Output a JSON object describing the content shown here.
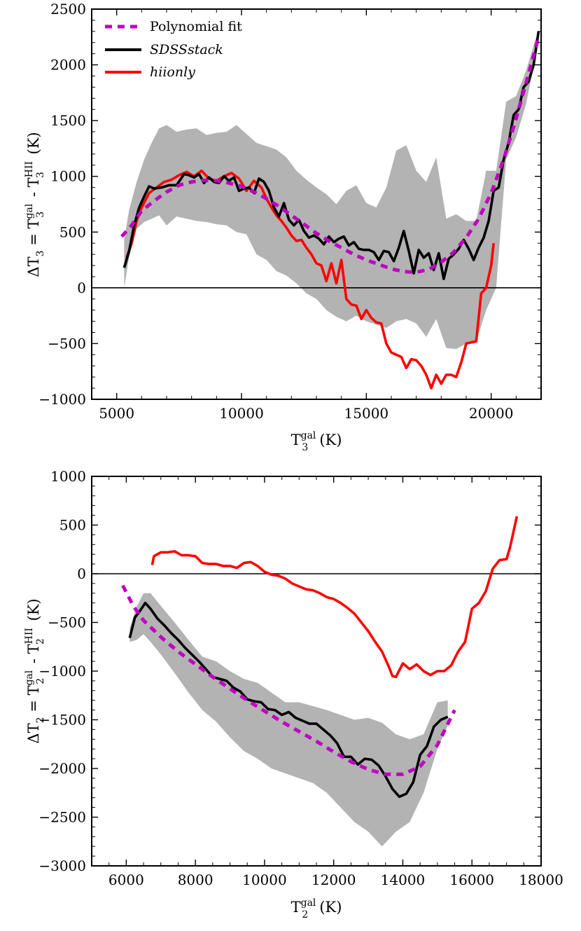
{
  "chart_data": [
    {
      "id": "top",
      "type": "line",
      "xlabel": {
        "main": "T",
        "sup": "gal",
        "sub": "3",
        "unit": "(K)"
      },
      "ylabel": {
        "prefix": "ΔT",
        "sub1": "3",
        "eq": " = T",
        "sup2": "gal",
        "sub2": "3",
        "mid": " - T",
        "sup3": "HII",
        "sub3": "3",
        "unit": " (K)"
      },
      "xlim": [
        4000,
        22000
      ],
      "ylim": [
        -1000,
        2500
      ],
      "xticks": [
        5000,
        10000,
        15000,
        20000
      ],
      "xtick_labels": [
        "5000",
        "10000",
        "15000",
        "20000"
      ],
      "yticks": [
        -1000,
        -500,
        0,
        500,
        1000,
        1500,
        2000,
        2500
      ],
      "ytick_labels": [
        "−1000",
        "−500",
        "0",
        "500",
        "1000",
        "1500",
        "2000",
        "2500"
      ],
      "xminor_step": 1000,
      "yminor_step": 100,
      "zero_line": 0,
      "legend": {
        "location": "upper-left",
        "entries": [
          {
            "label": "Polynomial fit",
            "style": "dashed",
            "color": "#bf00bf",
            "italic": false
          },
          {
            "label": "SDSSstack",
            "style": "solid",
            "color": "#000000",
            "italic": true
          },
          {
            "label": "hiionly",
            "style": "solid",
            "color": "#ff0000",
            "italic": true
          }
        ]
      },
      "band": {
        "name": "SDSSstack scatter",
        "color": "#b3b3b3",
        "x": [
          5300,
          5500,
          5800,
          6100,
          6400,
          6700,
          7000,
          7400,
          7800,
          8200,
          8600,
          9000,
          9400,
          9800,
          10200,
          10600,
          11000,
          11400,
          11800,
          12200,
          12600,
          13000,
          13400,
          13800,
          14200,
          14600,
          15000,
          15400,
          15800,
          16200,
          16600,
          17000,
          17400,
          17800,
          18200,
          18600,
          19000,
          19400,
          19800,
          20200,
          20600,
          21000,
          21400,
          21800
        ],
        "upper": [
          430,
          700,
          950,
          1150,
          1300,
          1430,
          1460,
          1400,
          1420,
          1430,
          1370,
          1390,
          1400,
          1460,
          1380,
          1300,
          1270,
          1240,
          1170,
          1050,
          970,
          900,
          840,
          750,
          870,
          920,
          760,
          720,
          900,
          1230,
          1280,
          1050,
          950,
          1170,
          620,
          660,
          600,
          600,
          1050,
          1050,
          1670,
          1720,
          1950,
          2250
        ],
        "lower": [
          0,
          280,
          530,
          590,
          620,
          650,
          560,
          640,
          620,
          600,
          590,
          570,
          560,
          500,
          480,
          300,
          250,
          150,
          110,
          40,
          -50,
          -100,
          -200,
          -260,
          -300,
          -250,
          -300,
          -330,
          -360,
          -300,
          -280,
          -320,
          -440,
          -280,
          -540,
          -550,
          -500,
          -480,
          -200,
          0,
          1150,
          1350,
          1650,
          2100
        ]
      },
      "series": [
        {
          "name": "Polynomial fit",
          "style": "dashed",
          "color": "#bf00bf",
          "x": [
            5200,
            5600,
            6000,
            6500,
            7000,
            7500,
            8000,
            8500,
            9000,
            9500,
            10000,
            10500,
            11000,
            11500,
            12000,
            12500,
            13000,
            13500,
            14000,
            14500,
            15000,
            15500,
            16000,
            16500,
            17000,
            17500,
            18000,
            18500,
            19000,
            19500,
            20000,
            20500,
            21000,
            21500,
            21900
          ],
          "y": [
            460,
            560,
            690,
            780,
            860,
            920,
            950,
            965,
            960,
            940,
            910,
            860,
            800,
            730,
            650,
            570,
            490,
            420,
            360,
            300,
            250,
            210,
            170,
            145,
            140,
            165,
            230,
            320,
            450,
            620,
            850,
            1150,
            1520,
            1920,
            2250
          ]
        },
        {
          "name": "SDSSstack",
          "style": "solid",
          "color": "#000000",
          "x": [
            5300,
            5500,
            5700,
            5900,
            6100,
            6300,
            6500,
            6800,
            7100,
            7400,
            7700,
            7900,
            8100,
            8300,
            8500,
            8700,
            8900,
            9100,
            9300,
            9500,
            9700,
            9900,
            10100,
            10300,
            10500,
            10700,
            10900,
            11100,
            11300,
            11500,
            11700,
            11900,
            12100,
            12300,
            12500,
            12700,
            12900,
            13100,
            13300,
            13500,
            13700,
            13900,
            14100,
            14300,
            14500,
            14700,
            14900,
            15100,
            15300,
            15500,
            15700,
            15900,
            16100,
            16300,
            16500,
            16700,
            16900,
            17100,
            17300,
            17500,
            17700,
            17900,
            18100,
            18300,
            18500,
            18700,
            18900,
            19100,
            19300,
            19500,
            19700,
            19900,
            20100,
            20300,
            20500,
            20700,
            20900,
            21100,
            21300,
            21500,
            21700,
            21900
          ],
          "y": [
            180,
            330,
            560,
            720,
            820,
            910,
            890,
            900,
            920,
            920,
            1020,
            1010,
            990,
            1020,
            940,
            990,
            950,
            940,
            1000,
            960,
            990,
            870,
            890,
            900,
            850,
            980,
            950,
            870,
            720,
            640,
            760,
            610,
            560,
            610,
            510,
            450,
            470,
            440,
            390,
            460,
            410,
            440,
            460,
            380,
            410,
            350,
            340,
            340,
            320,
            250,
            330,
            320,
            240,
            360,
            510,
            330,
            130,
            340,
            270,
            310,
            160,
            310,
            80,
            260,
            300,
            350,
            430,
            350,
            250,
            360,
            450,
            600,
            870,
            900,
            1150,
            1300,
            1550,
            1600,
            1800,
            1850,
            2000,
            2300
          ]
        },
        {
          "name": "hiionly",
          "style": "solid",
          "color": "#ff0000",
          "x": [
            5400,
            5600,
            5800,
            6000,
            6300,
            6600,
            6900,
            7200,
            7500,
            7800,
            8100,
            8400,
            8700,
            9000,
            9300,
            9600,
            9900,
            10200,
            10500,
            10800,
            11000,
            11200,
            11400,
            11600,
            11800,
            12000,
            12200,
            12400,
            12600,
            12800,
            13000,
            13200,
            13400,
            13600,
            13800,
            14000,
            14200,
            14400,
            14600,
            14800,
            15000,
            15200,
            15400,
            15600,
            15800,
            16000,
            16200,
            16400,
            16600,
            16800,
            17000,
            17200,
            17400,
            17600,
            17800,
            18000,
            18200,
            18400,
            18600,
            18800,
            19000,
            19200,
            19400,
            19600,
            19800,
            20000,
            20100
          ],
          "y": [
            270,
            400,
            600,
            720,
            850,
            900,
            950,
            970,
            1010,
            1040,
            1000,
            1050,
            980,
            960,
            1000,
            1030,
            980,
            870,
            960,
            900,
            800,
            720,
            650,
            600,
            540,
            470,
            420,
            430,
            360,
            300,
            220,
            200,
            60,
            220,
            40,
            250,
            -100,
            -150,
            -160,
            -280,
            -200,
            -270,
            -310,
            -320,
            -500,
            -580,
            -600,
            -620,
            -720,
            -640,
            -650,
            -700,
            -780,
            -900,
            -780,
            -860,
            -780,
            -780,
            -800,
            -670,
            -500,
            -490,
            -480,
            -50,
            0,
            200,
            400
          ]
        }
      ]
    },
    {
      "id": "bottom",
      "type": "line",
      "xlabel": {
        "main": "T",
        "sup": "gal",
        "sub": "2",
        "unit": "(K)"
      },
      "ylabel": {
        "prefix": "ΔT",
        "sub1": "2",
        "eq": " = T",
        "sup2": "gal",
        "sub2": "2",
        "mid": " - T",
        "sup3": "HII",
        "sub3": "2",
        "unit": " (K)"
      },
      "xlim": [
        5000,
        18000
      ],
      "ylim": [
        -3000,
        1000
      ],
      "xticks": [
        6000,
        8000,
        10000,
        12000,
        14000,
        16000,
        18000
      ],
      "xtick_labels": [
        "6000",
        "8000",
        "10000",
        "12000",
        "14000",
        "16000",
        "18000"
      ],
      "yticks": [
        -3000,
        -2500,
        -2000,
        -1500,
        -1000,
        -500,
        0,
        500,
        1000
      ],
      "ytick_labels": [
        "−3000",
        "−2500",
        "−2000",
        "−1500",
        "−1000",
        "−500",
        "0",
        "500",
        "1000"
      ],
      "xminor_step": 500,
      "yminor_step": 100,
      "zero_line": 0,
      "legend": null,
      "band": {
        "name": "SDSSstack scatter",
        "color": "#b3b3b3",
        "x": [
          6100,
          6300,
          6500,
          6700,
          7000,
          7400,
          7800,
          8200,
          8600,
          9000,
          9400,
          9800,
          10200,
          10600,
          11000,
          11400,
          11800,
          12200,
          12600,
          13000,
          13400,
          13800,
          14200,
          14600,
          15000,
          15300
        ],
        "upper": [
          -560,
          -340,
          -200,
          -200,
          -330,
          -500,
          -680,
          -850,
          -900,
          -1000,
          -1080,
          -1120,
          -1220,
          -1320,
          -1320,
          -1360,
          -1400,
          -1450,
          -1500,
          -1480,
          -1530,
          -1650,
          -1700,
          -1650,
          -1320,
          -1300
        ],
        "lower": [
          -700,
          -680,
          -620,
          -700,
          -830,
          -1020,
          -1220,
          -1400,
          -1520,
          -1680,
          -1820,
          -1900,
          -2000,
          -2050,
          -2100,
          -2150,
          -2250,
          -2400,
          -2550,
          -2650,
          -2800,
          -2650,
          -2550,
          -2250,
          -1800,
          -1560
        ]
      },
      "series": [
        {
          "name": "Polynomial fit",
          "style": "dashed",
          "color": "#bf00bf",
          "x": [
            5900,
            6200,
            6500,
            7000,
            7500,
            8000,
            8500,
            9000,
            9500,
            10000,
            10500,
            11000,
            11500,
            12000,
            12500,
            13000,
            13500,
            14000,
            14500,
            15000,
            15500
          ],
          "y": [
            -120,
            -330,
            -480,
            -650,
            -800,
            -930,
            -1060,
            -1180,
            -1300,
            -1410,
            -1520,
            -1620,
            -1720,
            -1830,
            -1930,
            -2010,
            -2060,
            -2060,
            -1980,
            -1760,
            -1400
          ]
        },
        {
          "name": "SDSSstack",
          "style": "solid",
          "color": "#000000",
          "x": [
            6100,
            6250,
            6400,
            6550,
            6700,
            6900,
            7100,
            7300,
            7500,
            7700,
            7900,
            8100,
            8300,
            8500,
            8700,
            8900,
            9100,
            9300,
            9500,
            9700,
            9900,
            10100,
            10300,
            10500,
            10700,
            10900,
            11100,
            11300,
            11500,
            11700,
            11900,
            12100,
            12300,
            12500,
            12700,
            12900,
            13100,
            13300,
            13500,
            13700,
            13900,
            14100,
            14300,
            14500,
            14700,
            14900,
            15100,
            15300
          ],
          "y": [
            -660,
            -450,
            -380,
            -300,
            -360,
            -460,
            -530,
            -610,
            -680,
            -760,
            -830,
            -900,
            -980,
            -1060,
            -1080,
            -1100,
            -1170,
            -1210,
            -1290,
            -1310,
            -1320,
            -1390,
            -1400,
            -1450,
            -1420,
            -1480,
            -1510,
            -1540,
            -1540,
            -1600,
            -1660,
            -1740,
            -1880,
            -1880,
            -1960,
            -1900,
            -1910,
            -1970,
            -2080,
            -2210,
            -2290,
            -2260,
            -2140,
            -1860,
            -1770,
            -1570,
            -1500,
            -1470
          ]
        },
        {
          "name": "hiionly",
          "style": "solid",
          "color": "#ff0000",
          "x": [
            6750,
            6800,
            7000,
            7200,
            7400,
            7600,
            7800,
            8000,
            8200,
            8400,
            8600,
            8800,
            9000,
            9200,
            9400,
            9600,
            9800,
            10000,
            10200,
            10400,
            10600,
            10800,
            11000,
            11200,
            11400,
            11600,
            11800,
            12000,
            12200,
            12400,
            12600,
            12800,
            13000,
            13200,
            13400,
            13600,
            13700,
            13800,
            14000,
            14200,
            14400,
            14600,
            14800,
            15000,
            15200,
            15400,
            15600,
            15800,
            16000,
            16200,
            16400,
            16600,
            16800,
            17000,
            17100,
            17300
          ],
          "y": [
            90,
            180,
            220,
            220,
            230,
            190,
            190,
            180,
            110,
            100,
            100,
            80,
            80,
            60,
            110,
            120,
            80,
            20,
            -10,
            -20,
            -50,
            -100,
            -130,
            -160,
            -170,
            -200,
            -240,
            -260,
            -300,
            -350,
            -410,
            -500,
            -590,
            -700,
            -800,
            -960,
            -1050,
            -1060,
            -920,
            -980,
            -930,
            -1000,
            -1040,
            -1000,
            -1000,
            -940,
            -800,
            -700,
            -360,
            -300,
            -180,
            50,
            140,
            150,
            270,
            590
          ]
        }
      ]
    }
  ]
}
